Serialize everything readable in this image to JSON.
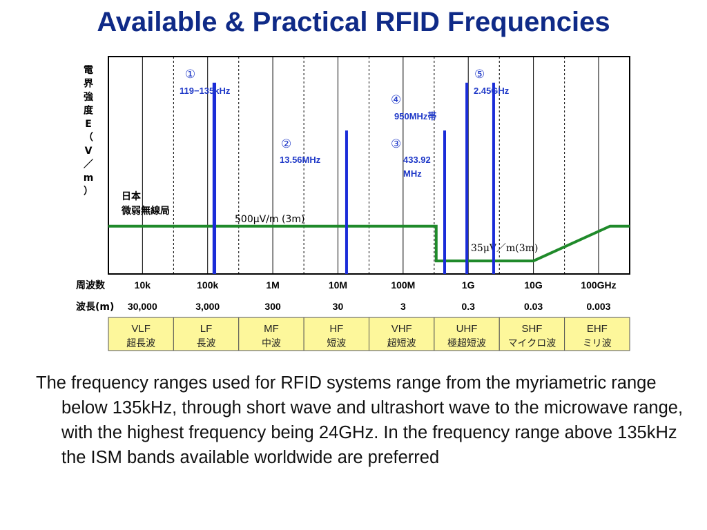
{
  "slide": {
    "title": "Available & Practical RFID Frequencies",
    "body": "The frequency ranges used for RFID systems range from the myriametric range below 135kHz, through short wave and ultrashort wave to the microwave range, with the highest frequency being 24GHz. In the frequency range above 135kHz the ISM bands available worldwide are preferred"
  },
  "chart_data": {
    "type": "bar",
    "ylabel": "電界強度E（V／m）",
    "x_scale": "log",
    "x_unit": "Hz",
    "x_range": [
      3000,
      300000000000
    ],
    "grid": true,
    "tick_row_label": "周波数",
    "ticks": [
      {
        "hz": 10000,
        "label": "10k"
      },
      {
        "hz": 100000,
        "label": "100k"
      },
      {
        "hz": 1000000,
        "label": "1M"
      },
      {
        "hz": 10000000,
        "label": "10M"
      },
      {
        "hz": 100000000,
        "label": "100M"
      },
      {
        "hz": 1000000000,
        "label": "1G"
      },
      {
        "hz": 10000000000,
        "label": "10G"
      },
      {
        "hz": 100000000000,
        "label": "100GHz"
      }
    ],
    "wavelength_row_label": "波長(m)",
    "wavelengths": [
      "30,000",
      "3,000",
      "300",
      "30",
      "3",
      "0.3",
      "0.03",
      "0.003"
    ],
    "bands": [
      {
        "name": "VLF",
        "jp": "超長波",
        "from_hz": 3000,
        "to_hz": 30000
      },
      {
        "name": "LF",
        "jp": "長波",
        "from_hz": 30000,
        "to_hz": 300000
      },
      {
        "name": "MF",
        "jp": "中波",
        "from_hz": 300000,
        "to_hz": 3000000
      },
      {
        "name": "HF",
        "jp": "短波",
        "from_hz": 3000000,
        "to_hz": 30000000
      },
      {
        "name": "VHF",
        "jp": "超短波",
        "from_hz": 30000000,
        "to_hz": 300000000
      },
      {
        "name": "UHF",
        "jp": "極超短波",
        "from_hz": 300000000,
        "to_hz": 3000000000
      },
      {
        "name": "SHF",
        "jp": "マイクロ波",
        "from_hz": 3000000000,
        "to_hz": 30000000000
      },
      {
        "name": "EHF",
        "jp": "ミリ波",
        "from_hz": 30000000000,
        "to_hz": 300000000000
      }
    ],
    "rfid_bands": [
      {
        "marker": "①",
        "label": "119−135kHz",
        "from_hz": 119000,
        "to_hz": 135000,
        "level": 0.88
      },
      {
        "marker": "②",
        "label": "13.56MHz",
        "from_hz": 13560000,
        "to_hz": 13560000,
        "level": 0.66
      },
      {
        "marker": "③",
        "label": "433.92\nMHz",
        "from_hz": 433920000,
        "to_hz": 433920000,
        "level": 0.66
      },
      {
        "marker": "④",
        "label": "950MHz帯",
        "from_hz": 950000000,
        "to_hz": 950000000,
        "level": 0.88
      },
      {
        "marker": "⑤",
        "label": "2.45GHz",
        "from_hz": 2450000000,
        "to_hz": 2450000000,
        "level": 0.88
      }
    ],
    "limit_line": {
      "label_jp": "日本\n微弱無線局",
      "segments": [
        {
          "label": "500μV/m (3m)",
          "from_hz": 3000,
          "to_hz": 322000000,
          "level": 0.22
        },
        {
          "label": "35μV／m(3m)",
          "from_hz": 322000000,
          "to_hz": 10000000000,
          "level": 0.06
        }
      ],
      "rise": {
        "from_hz": 10000000000,
        "to_hz": 150000000000,
        "level_from": 0.06,
        "level_to": 0.22
      }
    },
    "colors": {
      "bars": "#1a2cd8",
      "limit": "#1f8a2a",
      "band_fill": "#fdf79b",
      "labels": "#1f39c8"
    }
  }
}
